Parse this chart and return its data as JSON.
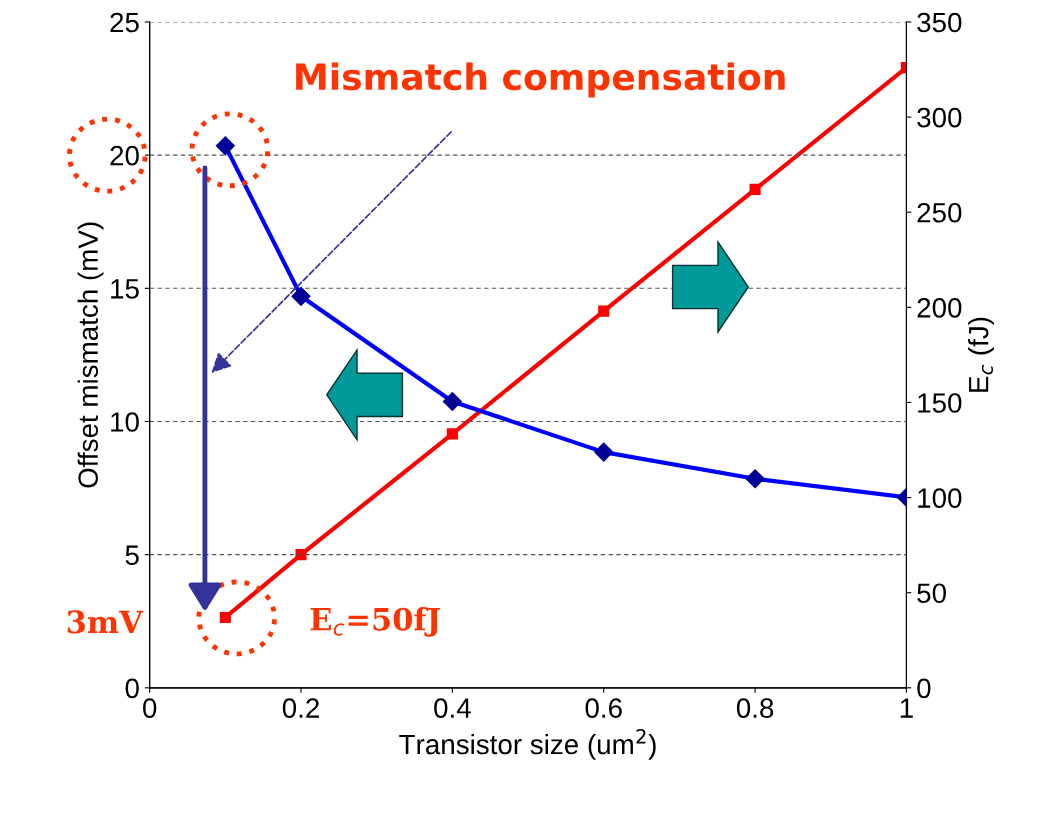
{
  "chart_data": {
    "type": "line",
    "xlabel": "Transistor size (um$^{2}$)",
    "ylabel": "Offset mismatch (mV)",
    "y2label": "E$_{c}$ (fJ)",
    "x": [
      0.1,
      0.2,
      0.4,
      0.6,
      0.8,
      1.0
    ],
    "series": [
      {
        "color": "#0000ff",
        "marker": "diamond",
        "values": [
          20.35,
          14.7,
          10.75,
          8.85,
          7.85,
          7.15
        ]
      },
      {
        "color": "#ff0000",
        "marker": "square",
        "axis": "y2",
        "values": [
          37,
          70,
          133.5,
          198,
          262,
          326
        ]
      }
    ],
    "xlim": [
      0,
      1
    ],
    "xticks": [
      0,
      0.2,
      0.4,
      0.6,
      0.8,
      1
    ],
    "ylim": [
      0,
      25
    ],
    "yticks": [
      0,
      5,
      10,
      15,
      20,
      25
    ],
    "y2lim": [
      0,
      350
    ],
    "y2ticks": [
      0,
      50,
      100,
      150,
      200,
      250,
      300,
      350
    ],
    "grid": "y",
    "line_style": "solid",
    "annotations": [
      "Mismatch compensation",
      "3mV",
      "E$_{c}$=50fJ"
    ]
  }
}
